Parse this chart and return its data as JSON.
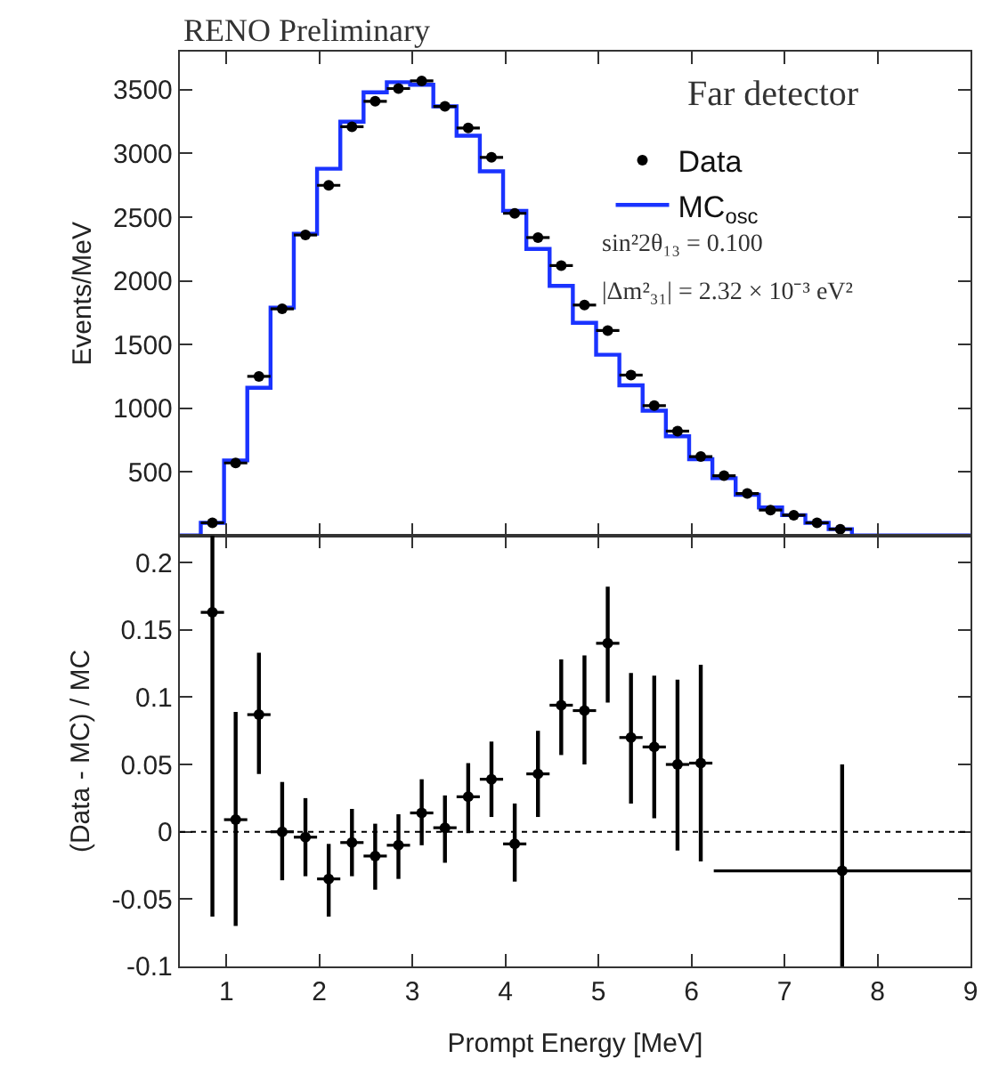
{
  "chart_data": [
    {
      "type": "scatter",
      "title": "RENO Preliminary",
      "ylabel": "Events/MeV",
      "xlim": [
        0.5,
        9
      ],
      "xticks": [
        1,
        2,
        3,
        4,
        5,
        6,
        7,
        8,
        9
      ],
      "ylim": [
        0,
        3800
      ],
      "yticks": [
        500,
        1000,
        1500,
        2000,
        2500,
        3000,
        3500
      ],
      "tick_labels": "y",
      "grid": false,
      "legend": "top right",
      "annotations": [
        "Far detector",
        "sin²2θ₁₃ = 0.100",
        "|Δm²₃₁| = 2.32 × 10⁻³ eV²"
      ],
      "series": [
        {
          "name": "Data",
          "type": "scatter",
          "marker": "circle",
          "color": "#000000",
          "x": [
            0.85,
            1.1,
            1.35,
            1.6,
            1.85,
            2.1,
            2.35,
            2.6,
            2.85,
            3.1,
            3.35,
            3.6,
            3.85,
            4.1,
            4.35,
            4.6,
            4.85,
            5.1,
            5.35,
            5.6,
            5.85,
            6.1,
            6.35,
            6.6,
            6.85,
            7.1,
            7.35,
            7.6
          ],
          "values": [
            100,
            570,
            1250,
            1780,
            2360,
            2750,
            3210,
            3410,
            3510,
            3570,
            3370,
            3200,
            2970,
            2530,
            2340,
            2120,
            1810,
            1610,
            1260,
            1020,
            820,
            620,
            470,
            330,
            200,
            160,
            100,
            50
          ],
          "xerrors": [
            0.125,
            0.125,
            0.125,
            0.125,
            0.125,
            0.125,
            0.125,
            0.125,
            0.125,
            0.125,
            0.125,
            0.125,
            0.125,
            0.125,
            0.125,
            0.125,
            0.125,
            0.125,
            0.125,
            0.125,
            0.125,
            0.125,
            0.125,
            0.125,
            0.125,
            0.125,
            0.125,
            0.125
          ]
        },
        {
          "name": "MC$_{osc}$",
          "type": "step",
          "color": "#1a33ff",
          "x": [
            0.5,
            0.725,
            0.975,
            1.225,
            1.475,
            1.725,
            1.975,
            2.225,
            2.475,
            2.725,
            2.975,
            3.225,
            3.475,
            3.725,
            3.975,
            4.225,
            4.475,
            4.725,
            4.975,
            5.225,
            5.475,
            5.725,
            5.975,
            6.225,
            6.475,
            6.725,
            6.975,
            7.225,
            7.475,
            7.725,
            9
          ],
          "values": [
            0,
            100,
            590,
            1160,
            1790,
            2370,
            2880,
            3250,
            3480,
            3560,
            3540,
            3370,
            3140,
            2860,
            2550,
            2250,
            1960,
            1670,
            1420,
            1180,
            980,
            780,
            600,
            450,
            320,
            220,
            160,
            100,
            50,
            0,
            0
          ]
        }
      ]
    },
    {
      "type": "scatter",
      "xlabel": "Prompt Energy [MeV]",
      "ylabel": "(Data - MC) / MC",
      "xlim": [
        0.5,
        9
      ],
      "xticks": [
        1,
        2,
        3,
        4,
        5,
        6,
        7,
        8,
        9
      ],
      "ylim": [
        -0.1,
        0.22
      ],
      "yticks": [
        -0.1,
        -0.05,
        0,
        0.05,
        0.1,
        0.15,
        0.2
      ],
      "grid": false,
      "ref_lines": [
        {
          "axis": "y",
          "value": 0,
          "label": null,
          "line_style": "dotted",
          "color": "#000000"
        }
      ],
      "series": [
        {
          "color": "#000000",
          "x": [
            0.85,
            1.1,
            1.35,
            1.6,
            1.85,
            2.1,
            2.35,
            2.6,
            2.85,
            3.1,
            3.35,
            3.6,
            3.85,
            4.1,
            4.35,
            4.6,
            4.85,
            5.1,
            5.35,
            5.6,
            5.85,
            6.1,
            7.62
          ],
          "values": [
            0.163,
            0.009,
            0.087,
            0.0,
            -0.004,
            -0.035,
            -0.008,
            -0.018,
            -0.01,
            0.014,
            0.003,
            0.026,
            0.039,
            -0.009,
            0.043,
            0.094,
            0.09,
            0.14,
            0.07,
            0.063,
            0.05,
            0.051,
            -0.029
          ],
          "errors": [
            [
              -0.063,
              0.22
            ],
            [
              -0.07,
              0.089
            ],
            [
              0.043,
              0.133
            ],
            [
              -0.036,
              0.037
            ],
            [
              -0.033,
              0.025
            ],
            [
              -0.063,
              -0.009
            ],
            [
              -0.033,
              0.017
            ],
            [
              -0.043,
              0.006
            ],
            [
              -0.035,
              0.013
            ],
            [
              -0.01,
              0.039
            ],
            [
              -0.023,
              0.027
            ],
            [
              -0.001,
              0.051
            ],
            [
              0.011,
              0.067
            ],
            [
              -0.037,
              0.021
            ],
            [
              0.011,
              0.075
            ],
            [
              0.057,
              0.128
            ],
            [
              0.05,
              0.131
            ],
            [
              0.096,
              0.182
            ],
            [
              0.021,
              0.118
            ],
            [
              0.01,
              0.116
            ],
            [
              -0.014,
              0.113
            ],
            [
              -0.022,
              0.124
            ],
            [
              -0.1,
              0.05
            ]
          ],
          "xerrors": [
            0.125,
            0.125,
            0.125,
            0.125,
            0.125,
            0.125,
            0.125,
            0.125,
            0.125,
            0.125,
            0.125,
            0.125,
            0.125,
            0.125,
            0.125,
            0.125,
            0.125,
            0.125,
            0.125,
            0.125,
            0.125,
            0.125,
            1.38
          ]
        }
      ]
    }
  ]
}
